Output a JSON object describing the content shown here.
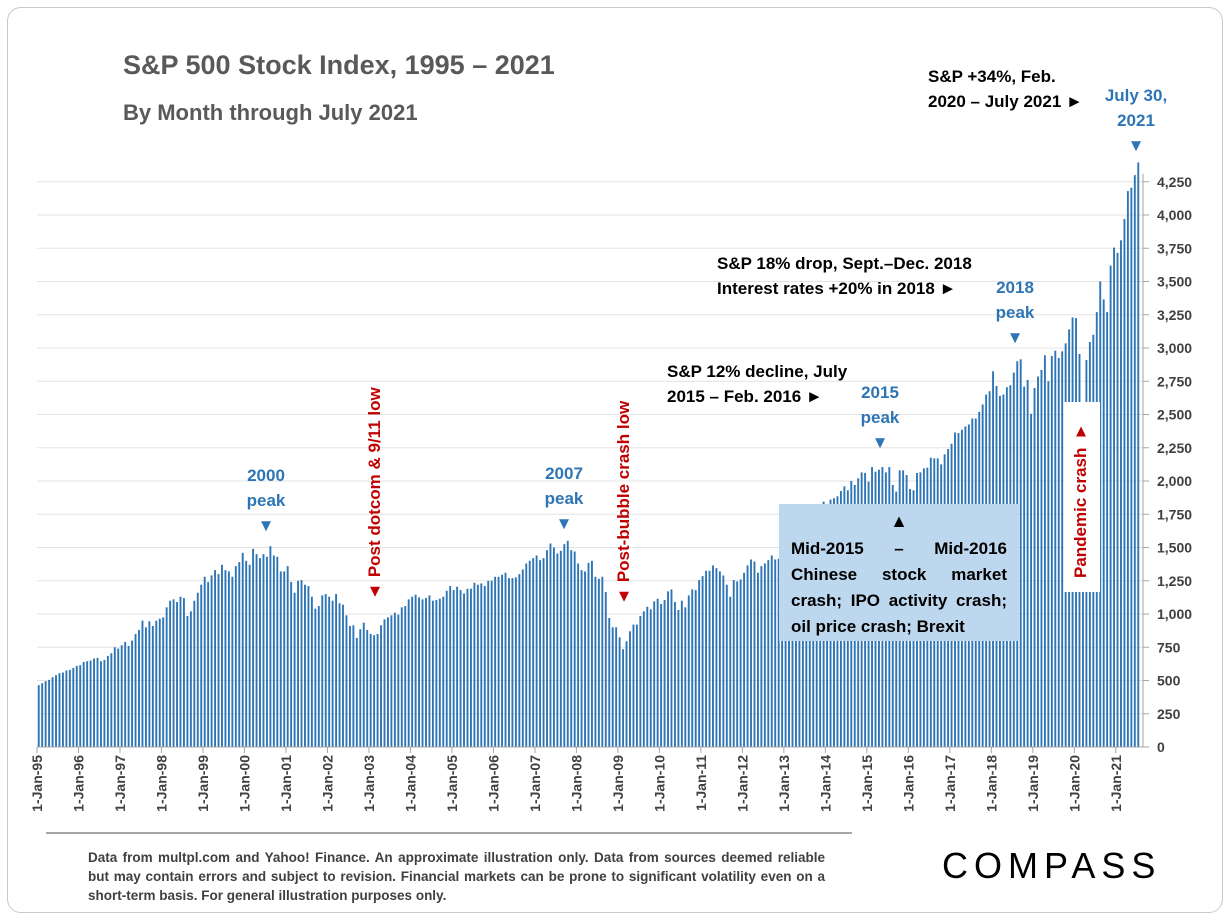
{
  "chart_data": {
    "type": "bar",
    "title": "S&P 500 Stock Index, 1995 – 2021",
    "subtitle": "By Month through July 2021",
    "frequency": "monthly",
    "x_start": "1995-01",
    "x_end": "2021-07",
    "x_tick_labels": [
      "1-Jan-95",
      "1-Jan-96",
      "1-Jan-97",
      "1-Jan-98",
      "1-Jan-99",
      "1-Jan-00",
      "1-Jan-01",
      "1-Jan-02",
      "1-Jan-03",
      "1-Jan-04",
      "1-Jan-05",
      "1-Jan-06",
      "1-Jan-07",
      "1-Jan-08",
      "1-Jan-09",
      "1-Jan-10",
      "1-Jan-11",
      "1-Jan-12",
      "1-Jan-13",
      "1-Jan-14",
      "1-Jan-15",
      "1-Jan-16",
      "1-Jan-17",
      "1-Jan-18",
      "1-Jan-19",
      "1-Jan-20",
      "1-Jan-21"
    ],
    "y_tick_labels": [
      "0",
      "250",
      "500",
      "750",
      "1,000",
      "1,250",
      "1,500",
      "1,750",
      "2,000",
      "2,250",
      "2,500",
      "2,750",
      "3,000",
      "3,250",
      "3,500",
      "3,750",
      "4,000",
      "4,250"
    ],
    "ylim": [
      0,
      4400
    ],
    "y_axis_side": "right",
    "grid": true,
    "bar_color": "#2e75b6",
    "values_by_year": [
      [
        465,
        480,
        495,
        505,
        525,
        540,
        555,
        560,
        575,
        580,
        595,
        610
      ],
      [
        615,
        640,
        645,
        650,
        665,
        670,
        645,
        655,
        685,
        705,
        750,
        740
      ],
      [
        765,
        790,
        760,
        800,
        850,
        880,
        950,
        900,
        945,
        910,
        950,
        965
      ],
      [
        975,
        1050,
        1100,
        1110,
        1090,
        1130,
        1120,
        985,
        1020,
        1100,
        1160,
        1220
      ],
      [
        1280,
        1240,
        1290,
        1330,
        1300,
        1370,
        1330,
        1320,
        1280,
        1360,
        1390,
        1460
      ],
      [
        1400,
        1370,
        1490,
        1450,
        1420,
        1450,
        1430,
        1510,
        1440,
        1430,
        1320,
        1320
      ],
      [
        1360,
        1240,
        1160,
        1250,
        1255,
        1220,
        1210,
        1130,
        1040,
        1060,
        1140,
        1150
      ],
      [
        1130,
        1100,
        1150,
        1080,
        1070,
        990,
        910,
        915,
        820,
        885,
        935,
        880
      ],
      [
        850,
        840,
        850,
        915,
        960,
        975,
        990,
        1010,
        995,
        1050,
        1060,
        1110
      ],
      [
        1130,
        1145,
        1125,
        1110,
        1120,
        1140,
        1100,
        1105,
        1115,
        1130,
        1175,
        1210
      ],
      [
        1180,
        1205,
        1180,
        1155,
        1190,
        1190,
        1235,
        1220,
        1230,
        1210,
        1250,
        1250
      ],
      [
        1280,
        1280,
        1295,
        1310,
        1270,
        1270,
        1275,
        1300,
        1335,
        1380,
        1400,
        1420
      ],
      [
        1440,
        1405,
        1420,
        1480,
        1530,
        1500,
        1455,
        1475,
        1525,
        1550,
        1480,
        1470
      ],
      [
        1380,
        1330,
        1320,
        1385,
        1400,
        1280,
        1265,
        1280,
        1165,
        970,
        900,
        900
      ],
      [
        825,
        735,
        795,
        870,
        920,
        920,
        985,
        1020,
        1055,
        1035,
        1095,
        1115
      ],
      [
        1075,
        1105,
        1170,
        1185,
        1090,
        1030,
        1100,
        1050,
        1140,
        1185,
        1180,
        1255
      ],
      [
        1285,
        1325,
        1325,
        1365,
        1345,
        1320,
        1290,
        1220,
        1130,
        1255,
        1245,
        1260
      ],
      [
        1310,
        1365,
        1410,
        1395,
        1310,
        1360,
        1380,
        1405,
        1440,
        1410,
        1415,
        1425
      ],
      [
        1500,
        1515,
        1570,
        1595,
        1630,
        1605,
        1685,
        1630,
        1680,
        1755,
        1805,
        1845
      ],
      [
        1780,
        1860,
        1870,
        1885,
        1925,
        1960,
        1930,
        2000,
        1970,
        2020,
        2065,
        2060
      ],
      [
        1995,
        2105,
        2070,
        2085,
        2105,
        2065,
        2105,
        1970,
        1920,
        2080,
        2080,
        2045
      ],
      [
        1940,
        1930,
        2060,
        2065,
        2095,
        2100,
        2175,
        2170,
        2170,
        2125,
        2200,
        2240
      ],
      [
        2280,
        2365,
        2360,
        2385,
        2410,
        2425,
        2470,
        2470,
        2520,
        2575,
        2650,
        2675
      ],
      [
        2825,
        2715,
        2640,
        2650,
        2705,
        2720,
        2815,
        2900,
        2915,
        2710,
        2760,
        2505
      ],
      [
        2700,
        2785,
        2835,
        2945,
        2750,
        2940,
        2980,
        2925,
        2975,
        3035,
        3140,
        3230
      ],
      [
        3225,
        2955,
        2585,
        2910,
        3045,
        3100,
        3270,
        3500,
        3365,
        3270,
        3620,
        3755
      ],
      [
        3715,
        3810,
        3970,
        4180,
        4205,
        4300,
        4395
      ]
    ]
  },
  "annotations": {
    "top_note": [
      "S&P +34%, Feb.",
      "2020 – July 2021 ►"
    ],
    "top_label": [
      "July 30,",
      "2021"
    ],
    "drop_2018": [
      "S&P 18% drop, Sept.–Dec. 2018",
      "Interest rates +20% in 2018 ►"
    ],
    "peak_2018": [
      "2018",
      "peak"
    ],
    "decline_2015": [
      "S&P 12% decline, July",
      "2015 – Feb. 2016 ►"
    ],
    "peak_2015": [
      "2015",
      "peak"
    ],
    "peak_2000": [
      "2000",
      "peak"
    ],
    "peak_2007": [
      "2007",
      "peak"
    ],
    "dotcom_low": "Post dotcom & 9/11 low",
    "bubble_low": "Post-bubble crash low",
    "pandemic": "Pandemic crash",
    "chinese_box": "Mid-2015 – Mid-2016 Chinese stock market crash; IPO activity crash; oil price crash; Brexit",
    "down_triangle": "▼",
    "up_triangle": "▲"
  },
  "footer": "Data from multpl.com and Yahoo! Finance. An approximate illustration only. Data from sources deemed reliable but may contain errors and subject to revision. Financial markets can be prone to significant volatility even on a short-term basis. For general illustration purposes only.",
  "logo": "COMPASS"
}
